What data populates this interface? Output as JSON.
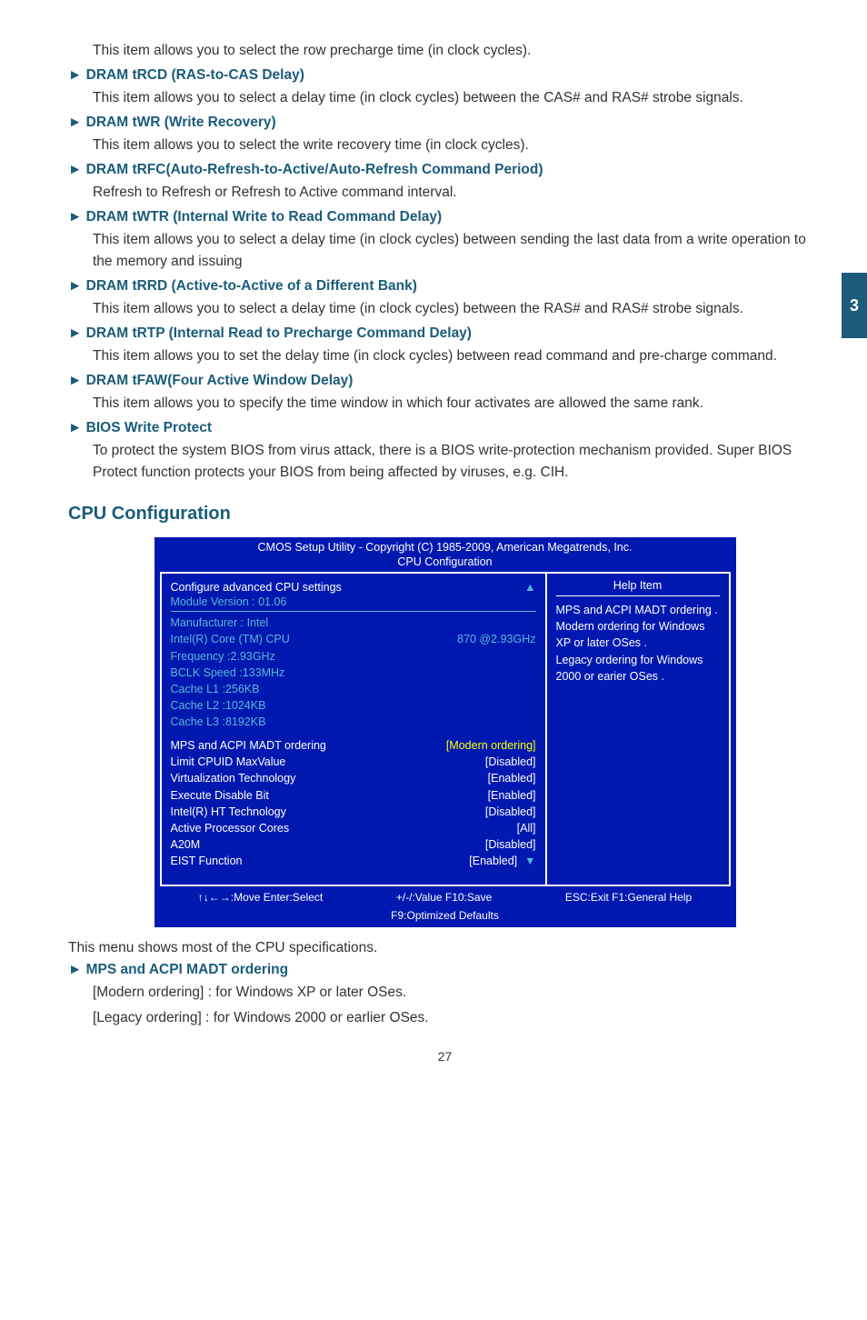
{
  "sideTab": "3",
  "intro": "This item allows you to select the row precharge time (in clock cycles).",
  "items": [
    {
      "head": "► DRAM tRCD (RAS-to-CAS Delay)",
      "desc": "This item allows you to select a delay time (in clock cycles) between the CAS# and RAS# strobe signals."
    },
    {
      "head": "► DRAM tWR (Write Recovery)",
      "desc": "This item allows you to select the write recovery time (in clock cycles)."
    },
    {
      "head": "► DRAM tRFC(Auto-Refresh-to-Active/Auto-Refresh Command Period)",
      "desc": "Refresh to Refresh or Refresh to Active command interval."
    },
    {
      "head": "► DRAM tWTR (Internal Write to Read Command Delay)",
      "desc": "This item allows you to select a delay time (in clock cycles) between sending the last data from a write operation to the memory and issuing"
    },
    {
      "head": "► DRAM tRRD (Active-to-Active of a Different Bank)",
      "desc": "This item allows you to select a delay time (in clock cycles) between the RAS# and RAS# strobe signals."
    },
    {
      "head": "► DRAM tRTP (Internal Read to Precharge Command Delay)",
      "desc": "This item allows you to set the delay time (in clock cycles) between read command and pre-charge command."
    },
    {
      "head": "► DRAM tFAW(Four Active Window Delay)",
      "desc": "This item allows you to specify the time window in which four activates are allowed the same rank."
    },
    {
      "head": "► BIOS Write Protect",
      "desc": "To protect the system BIOS from virus attack, there is a BIOS write-protection mechanism provided. Super BIOS Protect function protects your BIOS from being affected by viruses, e.g. CIH."
    }
  ],
  "sectionTitle": "CPU Configuration",
  "bios": {
    "title": "CMOS Setup Utility - Copyright (C) 1985-2009, American Megatrends, Inc.",
    "subtitle": "CPU Configuration",
    "leftHeader": "Configure advanced CPU settings",
    "moduleVersion": "Module Version :  01.06",
    "info": [
      {
        "l": "Manufacturer : Intel",
        "r": ""
      },
      {
        "l": "Intel(R) Core (TM) CPU",
        "r": "870   @2.93GHz"
      },
      {
        "l": "Frequency       :2.93GHz",
        "r": ""
      },
      {
        "l": "BCLK Speed  :133MHz",
        "r": ""
      },
      {
        "l": "Cache L1       :256KB",
        "r": ""
      },
      {
        "l": "Cache L2       :1024KB",
        "r": ""
      },
      {
        "l": "Cache L3       :8192KB",
        "r": ""
      }
    ],
    "settings": [
      {
        "l": "MPS and ACPI MADT ordering",
        "r": "[Modern ordering]",
        "hl": true
      },
      {
        "l": "Limit CPUID MaxValue",
        "r": "[Disabled]"
      },
      {
        "l": "Virtualization Technology",
        "r": "[Enabled]"
      },
      {
        "l": "Execute Disable Bit",
        "r": "[Enabled]"
      },
      {
        "l": "Intel(R) HT Technology",
        "r": "[Disabled]"
      },
      {
        "l": "Active Processor Cores",
        "r": "[All]"
      },
      {
        "l": "A20M",
        "r": "[Disabled]"
      },
      {
        "l": "EIST Function",
        "r": "[Enabled]"
      }
    ],
    "helpTitle": "Help Item",
    "helpText": "MPS and ACPI MADT ordering . \nModern ordering for Windows XP or later OSes . \nLegacy ordering for Windows 2000 or earier OSes .",
    "footer": {
      "move": "↑↓←→:Move   Enter:Select",
      "value": "+/-/:Value     F10:Save",
      "exit": "ESC:Exit    F1:General Help",
      "defaults": "F9:Optimized Defaults"
    }
  },
  "afterBios": "This menu shows most of the CPU specifications.",
  "mps": {
    "head": "► MPS and ACPI MADT ordering",
    "l1": "[Modern ordering] : for Windows XP or later OSes.",
    "l2": "[Legacy ordering] : for Windows 2000 or earlier OSes."
  },
  "pageNum": "27"
}
